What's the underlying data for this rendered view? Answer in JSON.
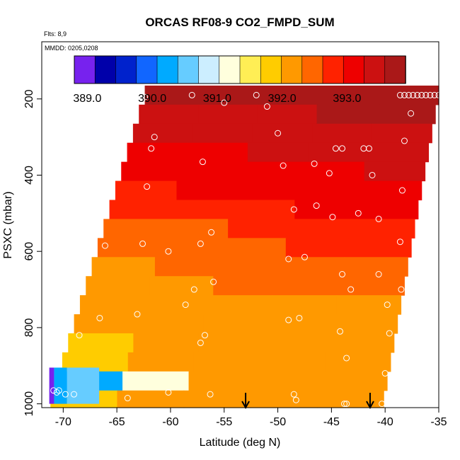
{
  "chart_data": {
    "type": "heatmap",
    "title": "ORCAS RF08-9 CO2_FMPD_SUM",
    "subtitle_lines": [
      "Flts: 8,9",
      "MMDD: 0205,0208"
    ],
    "xlabel": "Latitude (deg N)",
    "ylabel": "PSXC (mbar)",
    "xlim": [
      -72,
      -35
    ],
    "ylim": [
      1010,
      50
    ],
    "x_ticks": [
      -70,
      -65,
      -60,
      -55,
      -50,
      -45,
      -40,
      -35
    ],
    "x_tick_labels": [
      "-70",
      "-65",
      "-60",
      "-55",
      "-50",
      "-45",
      "-40",
      "-35"
    ],
    "y_ticks": [
      200,
      400,
      600,
      800,
      1000
    ],
    "y_tick_labels": [
      "200",
      "400",
      "600",
      "800",
      "1000"
    ],
    "colorbar": {
      "range": [
        388.8,
        393.9
      ],
      "ticks": [
        389.0,
        390.0,
        391.0,
        392.0,
        393.0
      ],
      "tick_labels": [
        "389.0",
        "390.0",
        "391.0",
        "392.0",
        "393.0"
      ],
      "colors": [
        "#7722ee",
        "#0000aa",
        "#0022cc",
        "#1166ff",
        "#00aaff",
        "#66ccff",
        "#cceeff",
        "#ffffdd",
        "#ffee55",
        "#ffcc00",
        "#ff9900",
        "#ff6600",
        "#ff2200",
        "#ee0000",
        "#cc1111",
        "#aa1818"
      ]
    },
    "layers": [
      {
        "p": 190,
        "values": [
          393.6,
          393.6,
          393.7,
          393.7,
          393.8
        ]
      },
      {
        "p": 240,
        "values": [
          393.4,
          393.5,
          393.5,
          393.6,
          393.6
        ]
      },
      {
        "p": 290,
        "values": [
          393.3,
          393.3,
          393.4,
          393.4,
          393.5
        ]
      },
      {
        "p": 340,
        "values": [
          393.2,
          393.2,
          393.3,
          393.3,
          393.4
        ]
      },
      {
        "p": 390,
        "values": [
          393.0,
          393.1,
          393.1,
          393.2,
          393.3
        ]
      },
      {
        "p": 440,
        "values": [
          392.9,
          393.0,
          393.0,
          393.1,
          393.1
        ]
      },
      {
        "p": 490,
        "values": [
          392.7,
          392.8,
          392.9,
          393.0,
          393.0
        ]
      },
      {
        "p": 540,
        "values": [
          392.5,
          392.6,
          392.7,
          392.8,
          392.9
        ]
      },
      {
        "p": 590,
        "values": [
          392.4,
          392.5,
          392.6,
          392.7,
          392.8
        ]
      },
      {
        "p": 640,
        "values": [
          392.3,
          392.4,
          392.5,
          392.6,
          392.6
        ]
      },
      {
        "p": 690,
        "values": [
          392.2,
          392.3,
          392.4,
          392.4,
          392.5
        ]
      },
      {
        "p": 740,
        "values": [
          392.1,
          392.2,
          392.3,
          392.3,
          392.3
        ]
      },
      {
        "p": 790,
        "values": [
          392.0,
          392.1,
          392.2,
          392.2,
          392.2
        ]
      },
      {
        "p": 840,
        "values": [
          391.9,
          392.0,
          392.1,
          392.2,
          392.2
        ]
      },
      {
        "p": 890,
        "values": [
          391.9,
          392.0,
          392.1,
          392.2,
          392.1
        ]
      },
      {
        "p": 940,
        "values": [
          390.2,
          391.2,
          392.0,
          392.1,
          392.1
        ]
      },
      {
        "p": 990,
        "values": [
          391.9,
          392.0,
          392.1,
          392.1,
          392.1
        ]
      }
    ],
    "layer_lat_edges": [
      {
        "p": 190,
        "left": -62.4,
        "right": -35.0
      },
      {
        "p": 1000,
        "left": -71.3,
        "right": -40.2
      }
    ],
    "blue_edge": {
      "p_top": 905,
      "p_bottom": 1000,
      "values": [
        389.0,
        390.3,
        390.7
      ]
    },
    "points": [
      [
        -62.4,
        195
      ],
      [
        -58.0,
        190
      ],
      [
        -55.0,
        210
      ],
      [
        -52.0,
        190
      ],
      [
        -51.0,
        220
      ],
      [
        -38.6,
        190
      ],
      [
        -38.2,
        190
      ],
      [
        -37.8,
        190
      ],
      [
        -37.4,
        190
      ],
      [
        -37.0,
        190
      ],
      [
        -36.6,
        190
      ],
      [
        -36.2,
        190
      ],
      [
        -35.8,
        190
      ],
      [
        -35.4,
        190
      ],
      [
        -35.0,
        190
      ],
      [
        -67.8,
        215
      ],
      [
        -67.9,
        250
      ],
      [
        -37.6,
        238
      ],
      [
        -68.2,
        300
      ],
      [
        -61.5,
        300
      ],
      [
        -50.0,
        290
      ],
      [
        -64.8,
        330
      ],
      [
        -61.8,
        330
      ],
      [
        -44.6,
        330
      ],
      [
        -44.0,
        330
      ],
      [
        -42.0,
        330
      ],
      [
        -41.5,
        330
      ],
      [
        -38.2,
        310
      ],
      [
        -69.6,
        370
      ],
      [
        -57.0,
        365
      ],
      [
        -49.5,
        375
      ],
      [
        -46.6,
        370
      ],
      [
        -45.2,
        395
      ],
      [
        -41.2,
        400
      ],
      [
        -66.8,
        430
      ],
      [
        -62.2,
        430
      ],
      [
        -38.4,
        440
      ],
      [
        -48.5,
        490
      ],
      [
        -46.4,
        480
      ],
      [
        -44.9,
        510
      ],
      [
        -42.5,
        500
      ],
      [
        -40.6,
        515
      ],
      [
        -56.2,
        550
      ],
      [
        -70.3,
        575
      ],
      [
        -69.7,
        575
      ],
      [
        -66.1,
        585
      ],
      [
        -62.6,
        580
      ],
      [
        -57.2,
        580
      ],
      [
        -38.6,
        575
      ],
      [
        -60.2,
        600
      ],
      [
        -49.0,
        620
      ],
      [
        -47.5,
        615
      ],
      [
        -44.0,
        660
      ],
      [
        -40.6,
        660
      ],
      [
        -57.8,
        700
      ],
      [
        -56.0,
        680
      ],
      [
        -43.2,
        700
      ],
      [
        -38.5,
        700
      ],
      [
        -58.6,
        740
      ],
      [
        -39.8,
        740
      ],
      [
        -70.8,
        775
      ],
      [
        -70.6,
        815
      ],
      [
        -70.2,
        815
      ],
      [
        -68.5,
        820
      ],
      [
        -66.6,
        775
      ],
      [
        -63.1,
        765
      ],
      [
        -56.8,
        820
      ],
      [
        -57.2,
        840
      ],
      [
        -49.0,
        780
      ],
      [
        -48.0,
        775
      ],
      [
        -44.2,
        810
      ],
      [
        -39.6,
        815
      ],
      [
        -43.6,
        880
      ],
      [
        -40.0,
        920
      ],
      [
        -70.9,
        965
      ],
      [
        -70.6,
        970
      ],
      [
        -70.4,
        965
      ],
      [
        -69.8,
        975
      ],
      [
        -69.0,
        975
      ],
      [
        -64.0,
        985
      ],
      [
        -60.2,
        970
      ],
      [
        -56.3,
        975
      ],
      [
        -48.5,
        975
      ],
      [
        -48.3,
        990
      ],
      [
        -43.8,
        1000
      ],
      [
        -43.6,
        1000
      ],
      [
        -40.3,
        1000
      ]
    ],
    "markers": [
      -53.0,
      -41.4
    ]
  }
}
